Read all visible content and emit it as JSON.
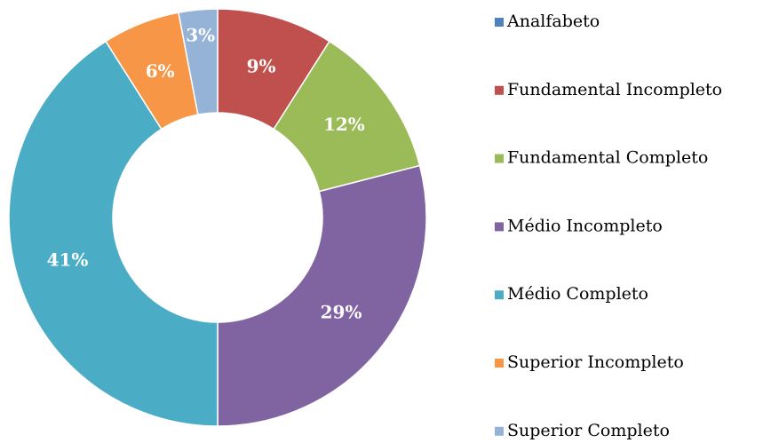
{
  "chart_data": {
    "type": "donut",
    "categories": [
      "Analfabeto",
      "Fundamental Incompleto",
      "Fundamental Completo",
      "Médio Incompleto",
      "Médio Completo",
      "Superior Incompleto",
      "Superior Completo"
    ],
    "values": [
      0,
      9,
      12,
      29,
      41,
      6,
      3
    ],
    "value_labels": [
      null,
      "9%",
      "12%",
      "29%",
      "41%",
      "6%",
      "3%"
    ],
    "colors": [
      "#4F81BD",
      "#C0504D",
      "#9BBB59",
      "#8064A2",
      "#4BACC6",
      "#F79646",
      "#95B3D7"
    ],
    "legend": "right"
  }
}
